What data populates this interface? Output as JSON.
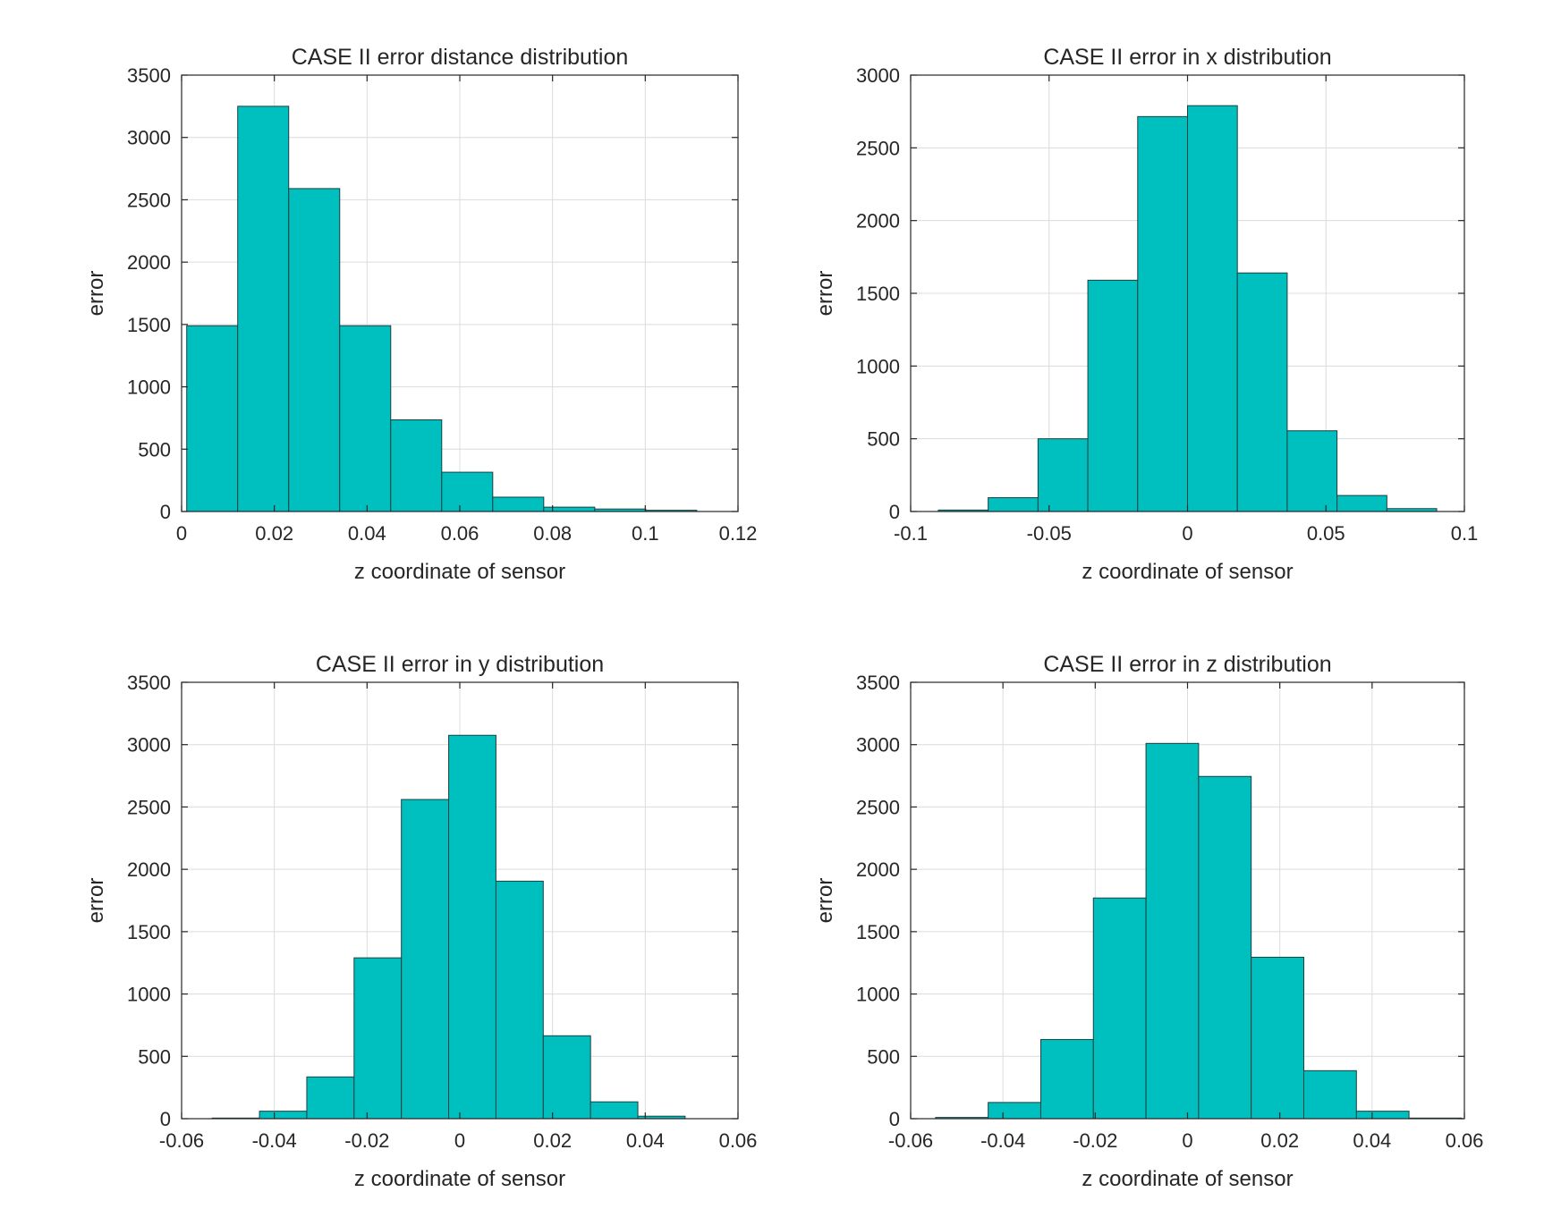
{
  "colors": {
    "bar_fill": "#00bfbf",
    "bar_edge": "#1f3f3f"
  },
  "chart_data": [
    {
      "type": "bar",
      "title": "CASE II error distance distribution",
      "xlabel": "z coordinate of sensor",
      "ylabel": "error",
      "xlim": [
        0,
        0.12
      ],
      "ylim": [
        0,
        3500
      ],
      "xticks": [
        0,
        0.02,
        0.04,
        0.06,
        0.08,
        0.1,
        0.12
      ],
      "xtick_labels": [
        "0",
        "0.02",
        "0.04",
        "0.06",
        "0.08",
        "0.1",
        "0.12"
      ],
      "yticks": [
        0,
        500,
        1000,
        1500,
        2000,
        2500,
        3000,
        3500
      ],
      "ytick_labels": [
        "0",
        "500",
        "1000",
        "1500",
        "2000",
        "2500",
        "3000",
        "3500"
      ],
      "grid": true,
      "bin_edges": [
        0.0011,
        0.0121,
        0.0231,
        0.0341,
        0.0451,
        0.0561,
        0.0671,
        0.0781,
        0.0891,
        0.1001,
        0.1111
      ],
      "values": [
        1490,
        3250,
        2590,
        1490,
        735,
        315,
        115,
        35,
        20,
        10
      ]
    },
    {
      "type": "bar",
      "title": "CASE II error in x distribution",
      "xlabel": "z coordinate of sensor",
      "ylabel": "error",
      "xlim": [
        -0.1,
        0.1
      ],
      "ylim": [
        0,
        3000
      ],
      "xticks": [
        -0.1,
        -0.05,
        0,
        0.05,
        0.1
      ],
      "xtick_labels": [
        "-0.1",
        "-0.05",
        "0",
        "0.05",
        "0.1"
      ],
      "yticks": [
        0,
        500,
        1000,
        1500,
        2000,
        2500,
        3000
      ],
      "ytick_labels": [
        "0",
        "500",
        "1000",
        "1500",
        "2000",
        "2500",
        "3000"
      ],
      "grid": true,
      "bin_edges": [
        -0.09,
        -0.072,
        -0.054,
        -0.036,
        -0.018,
        0.0,
        0.018,
        0.036,
        0.054,
        0.072,
        0.09
      ],
      "values": [
        10,
        95,
        500,
        1590,
        2715,
        2790,
        1640,
        555,
        110,
        20
      ]
    },
    {
      "type": "bar",
      "title": "CASE II error in y distribution",
      "xlabel": "z coordinate of sensor",
      "ylabel": "error",
      "xlim": [
        -0.06,
        0.06
      ],
      "ylim": [
        0,
        3500
      ],
      "xticks": [
        -0.06,
        -0.04,
        -0.02,
        0,
        0.02,
        0.04,
        0.06
      ],
      "xtick_labels": [
        "-0.06",
        "-0.04",
        "-0.02",
        "0",
        "0.02",
        "0.04",
        "0.06"
      ],
      "yticks": [
        0,
        500,
        1000,
        1500,
        2000,
        2500,
        3000,
        3500
      ],
      "ytick_labels": [
        "0",
        "500",
        "1000",
        "1500",
        "2000",
        "2500",
        "3000",
        "3500"
      ],
      "grid": true,
      "bin_edges": [
        -0.0534,
        -0.0432,
        -0.033,
        -0.0228,
        -0.0126,
        -0.0024,
        0.0078,
        0.018,
        0.0282,
        0.0384,
        0.0486
      ],
      "values": [
        5,
        60,
        335,
        1290,
        2560,
        3075,
        1905,
        665,
        135,
        20
      ]
    },
    {
      "type": "bar",
      "title": "CASE II error in z distribution",
      "xlabel": "z coordinate of sensor",
      "ylabel": "error",
      "xlim": [
        -0.06,
        0.06
      ],
      "ylim": [
        0,
        3500
      ],
      "xticks": [
        -0.06,
        -0.04,
        -0.02,
        0,
        0.02,
        0.04,
        0.06
      ],
      "xtick_labels": [
        "-0.06",
        "-0.04",
        "-0.02",
        "0",
        "0.02",
        "0.04",
        "0.06"
      ],
      "yticks": [
        0,
        500,
        1000,
        1500,
        2000,
        2500,
        3000,
        3500
      ],
      "ytick_labels": [
        "0",
        "500",
        "1000",
        "1500",
        "2000",
        "2500",
        "3000",
        "3500"
      ],
      "grid": true,
      "bin_edges": [
        -0.0546,
        -0.0432,
        -0.0318,
        -0.0204,
        -0.009,
        0.0024,
        0.0138,
        0.0252,
        0.0366,
        0.048,
        0.0594
      ],
      "values": [
        10,
        130,
        635,
        1770,
        3010,
        2745,
        1295,
        385,
        60,
        5
      ]
    }
  ]
}
